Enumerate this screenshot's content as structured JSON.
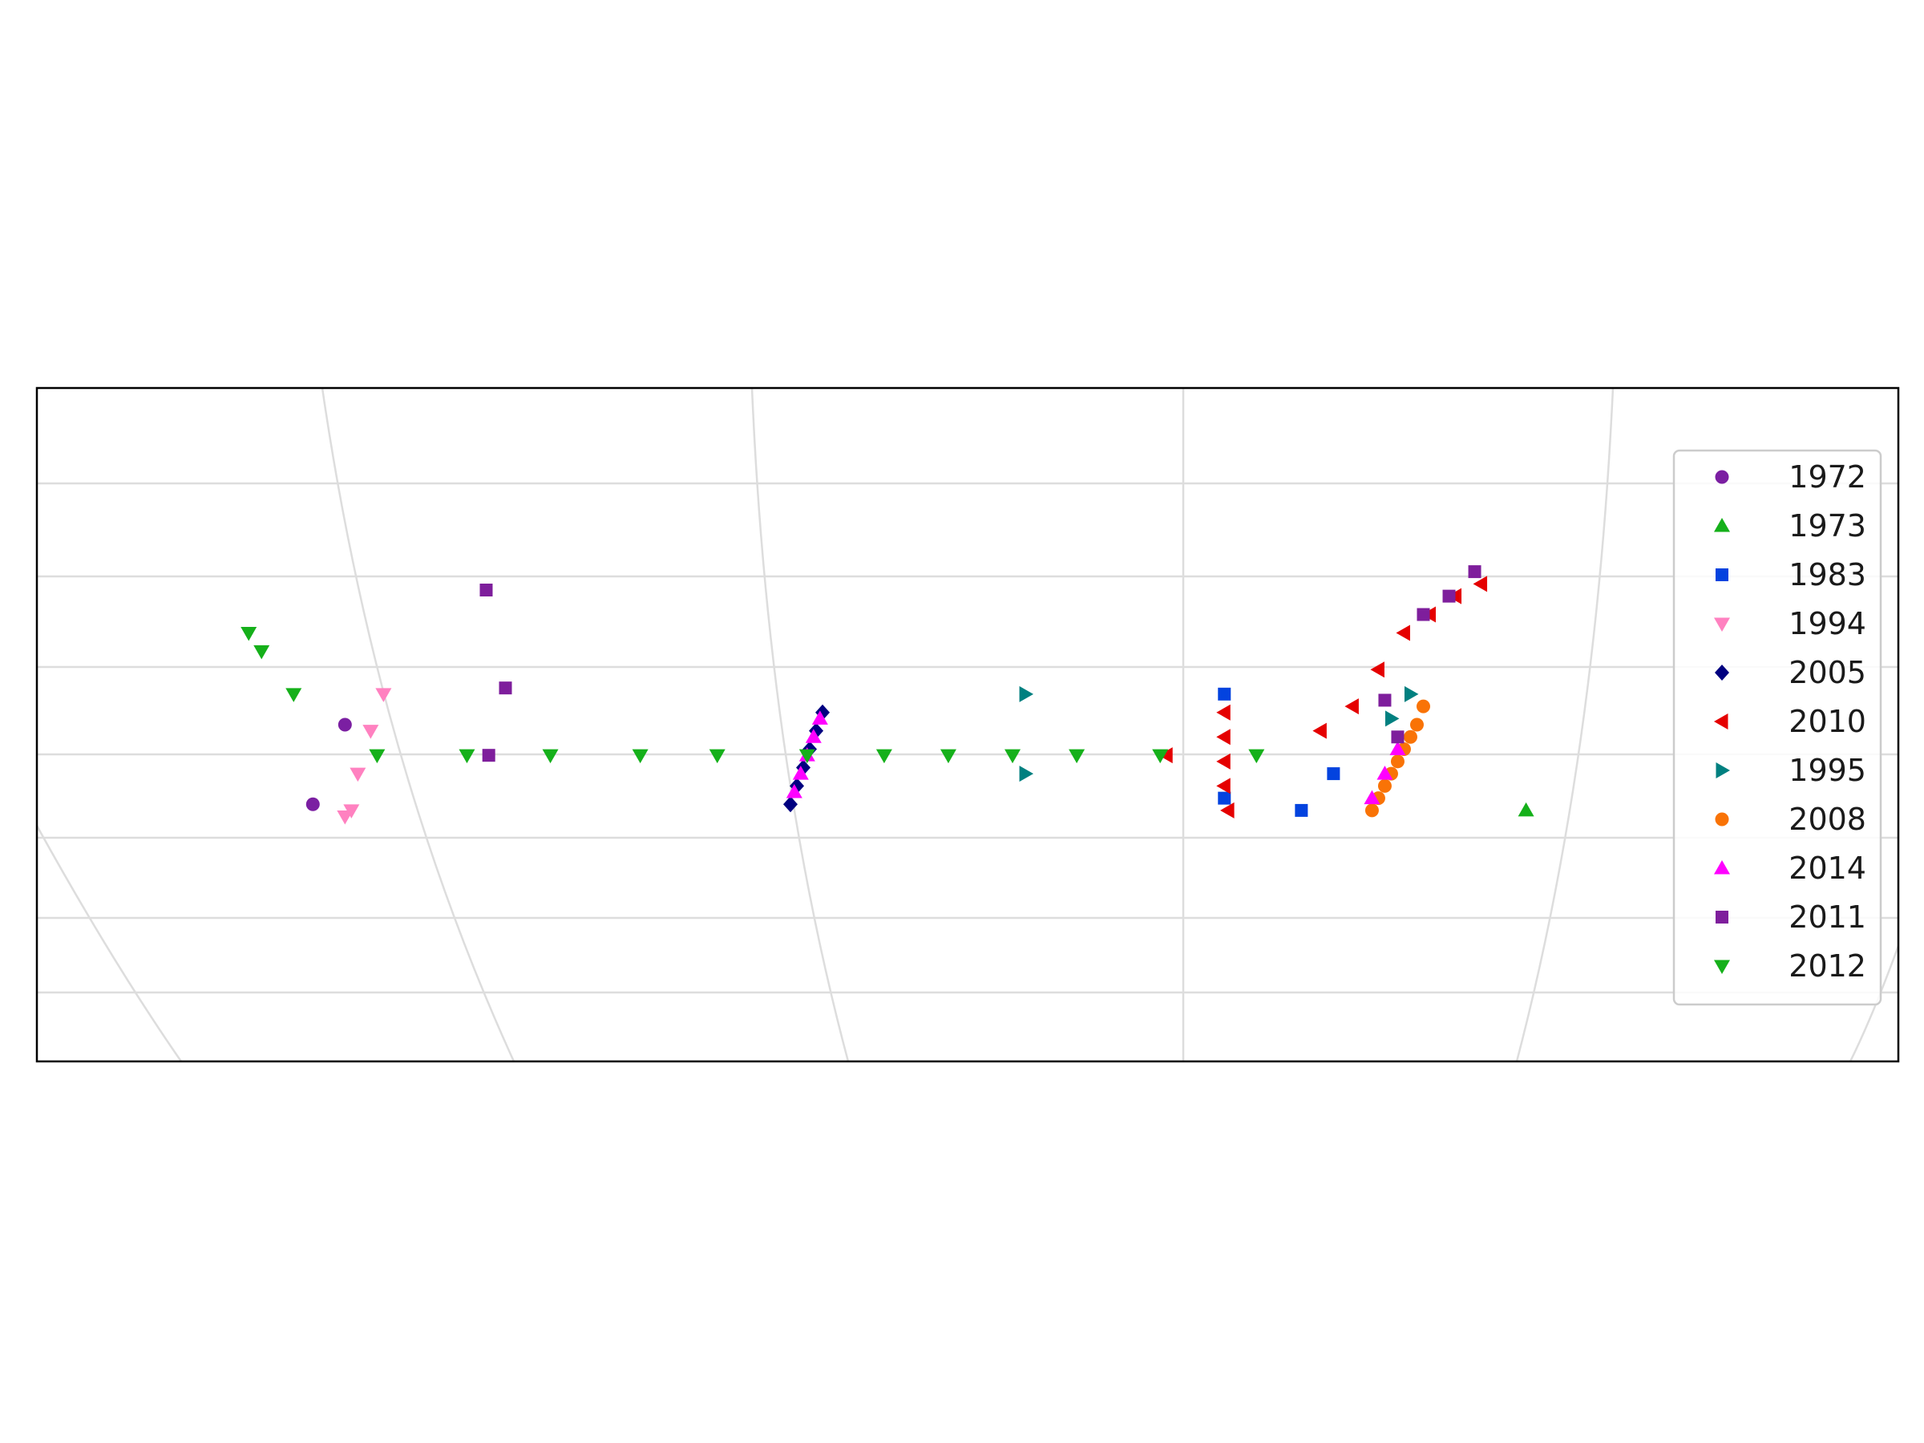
{
  "chart_data": {
    "type": "scatter",
    "title": "",
    "xlabel": "",
    "ylabel": "",
    "grid": true,
    "axis_ticks": "none",
    "legend_position": "right",
    "series": [
      {
        "name": "1972",
        "marker": "circle",
        "color": "#7b1fa2",
        "x": [
          -2.1,
          -2.35
        ],
        "y": [
          0.05,
          -0.08
        ]
      },
      {
        "name": "1973",
        "marker": "triangle-up",
        "color": "#15b01a",
        "x": [
          7.1
        ],
        "y": [
          -0.09
        ]
      },
      {
        "name": "1983",
        "marker": "square",
        "color": "#0343df",
        "x": [
          4.75,
          4.75,
          5.35,
          5.6
        ],
        "y": [
          0.1,
          -0.07,
          -0.09,
          -0.03
        ]
      },
      {
        "name": "1994",
        "marker": "triangle-down",
        "color": "#ff81c0",
        "x": [
          -1.8,
          -1.9,
          -2.0,
          -2.05,
          -2.1
        ],
        "y": [
          0.1,
          0.04,
          -0.03,
          -0.09,
          -0.1
        ]
      },
      {
        "name": "2005",
        "marker": "diamond",
        "color": "#000080",
        "x": [
          1.37,
          1.42,
          1.47,
          1.52,
          1.57,
          1.62
        ],
        "y": [
          -0.08,
          -0.05,
          -0.02,
          0.01,
          0.04,
          0.07
        ]
      },
      {
        "name": "2010",
        "marker": "triangle-left",
        "color": "#e50000",
        "x": [
          4.75,
          4.75,
          4.75,
          4.75,
          4.78,
          4.3,
          5.5,
          5.75,
          5.95,
          6.15,
          6.35,
          6.55,
          6.75
        ],
        "y": [
          0.07,
          0.03,
          -0.01,
          -0.05,
          -0.09,
          0.0,
          0.04,
          0.08,
          0.14,
          0.2,
          0.23,
          0.26,
          0.28
        ]
      },
      {
        "name": "1995",
        "marker": "triangle-right",
        "color": "#008080",
        "x": [
          3.2,
          3.2,
          6.2,
          6.05
        ],
        "y": [
          0.1,
          -0.03,
          0.1,
          0.06
        ]
      },
      {
        "name": "2008",
        "marker": "circle",
        "color": "#f97306",
        "x": [
          5.9,
          5.95,
          6.0,
          6.05,
          6.1,
          6.15,
          6.2,
          6.25,
          6.3
        ],
        "y": [
          -0.09,
          -0.07,
          -0.05,
          -0.03,
          -0.01,
          0.01,
          0.03,
          0.05,
          0.08
        ]
      },
      {
        "name": "2014",
        "marker": "triangle-up",
        "color": "#ff00ff",
        "x": [
          1.4,
          1.45,
          1.5,
          1.55,
          1.6,
          5.9,
          6.0,
          6.1
        ],
        "y": [
          -0.06,
          -0.03,
          0.0,
          0.03,
          0.06,
          -0.07,
          -0.03,
          0.01
        ]
      },
      {
        "name": "2011",
        "marker": "square",
        "color": "#7e1e9c",
        "x": [
          -1.0,
          -0.85,
          -0.98,
          6.0,
          6.1,
          6.3,
          6.5,
          6.7
        ],
        "y": [
          0.27,
          0.11,
          0.0,
          0.09,
          0.03,
          0.23,
          0.26,
          0.3
        ]
      },
      {
        "name": "2012",
        "marker": "triangle-down",
        "color": "#15b01a",
        "x": [
          -2.85,
          -2.75,
          -2.5,
          -1.85,
          -1.15,
          -0.5,
          0.2,
          0.8,
          1.5,
          2.1,
          2.6,
          3.1,
          3.6,
          4.25,
          5.0
        ],
        "y": [
          0.2,
          0.17,
          0.1,
          0.0,
          0.0,
          0.0,
          0.0,
          0.0,
          0.0,
          0.0,
          0.0,
          0.0,
          0.0,
          0.0,
          0.0
        ]
      }
    ]
  }
}
